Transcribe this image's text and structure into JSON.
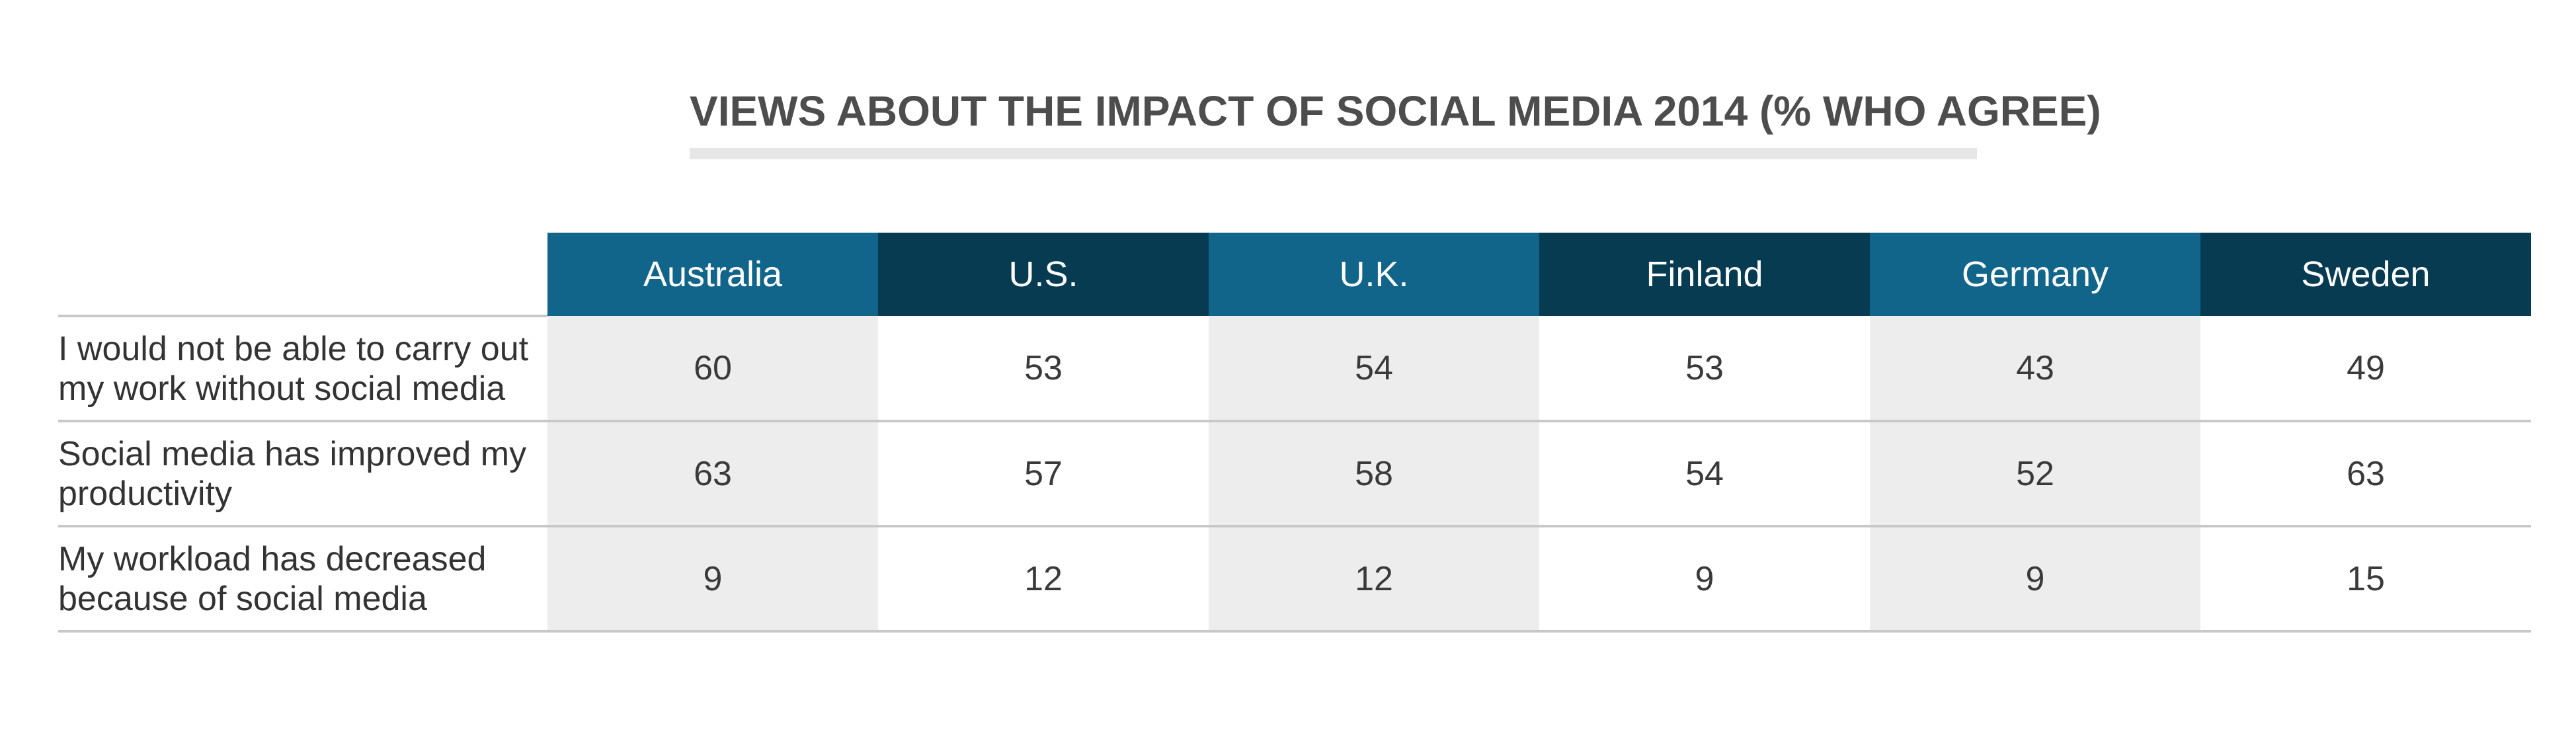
{
  "chart_data": {
    "type": "table",
    "title": "VIEWS ABOUT THE IMPACT OF SOCIAL MEDIA 2014 (% WHO AGREE)",
    "columns": [
      "Australia",
      "U.S.",
      "U.K.",
      "Finland",
      "Germany",
      "Sweden"
    ],
    "rows": [
      {
        "label": "I would not be able to carry out my work without social media",
        "values": [
          60,
          53,
          54,
          53,
          43,
          49
        ]
      },
      {
        "label": "Social media has improved my productivity",
        "values": [
          63,
          57,
          58,
          54,
          52,
          63
        ]
      },
      {
        "label": "My workload has decreased because of social media",
        "values": [
          9,
          12,
          12,
          9,
          9,
          15
        ]
      }
    ]
  },
  "colors": {
    "header_light": "#12658a",
    "header_dark": "#063b52",
    "shaded_column": "#ededed",
    "title_text": "#4d4d4d",
    "rule": "#c8c8c8"
  }
}
